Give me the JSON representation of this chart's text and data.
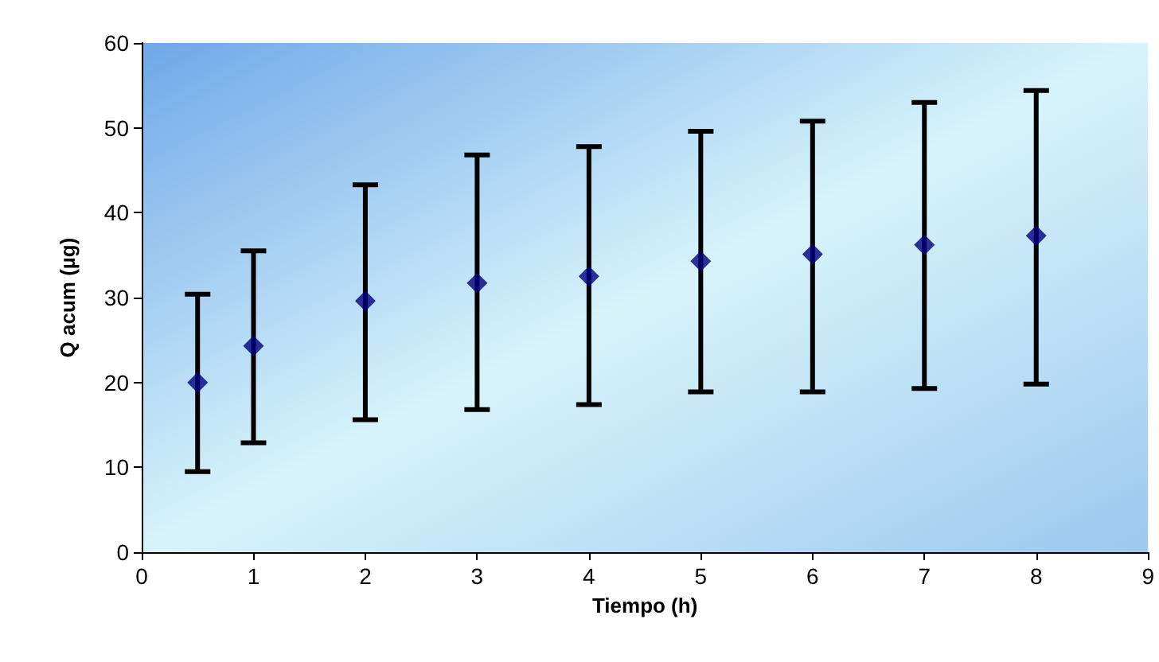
{
  "chart_data": {
    "type": "scatter",
    "xlabel": "Tiempo (h)",
    "ylabel": "Q acum (µg)",
    "x": [
      0.5,
      1,
      2,
      3,
      4,
      5,
      6,
      7,
      8
    ],
    "series": [
      {
        "color": "#000080",
        "values": [
          20.0,
          24.3,
          29.6,
          31.7,
          32.5,
          34.3,
          35.1,
          36.2,
          37.3
        ],
        "errors": [
          [
            9.5,
            30.4
          ],
          [
            12.9,
            35.5
          ],
          [
            15.6,
            43.3
          ],
          [
            16.8,
            46.8
          ],
          [
            17.4,
            47.8
          ],
          [
            18.9,
            49.6
          ],
          [
            18.9,
            50.8
          ],
          [
            19.3,
            53.0
          ],
          [
            19.8,
            54.4
          ]
        ]
      }
    ],
    "marker": "diamond",
    "grid": false,
    "xlim": [
      0,
      9
    ],
    "xticks": [
      0,
      1,
      2,
      3,
      4,
      5,
      6,
      7,
      8,
      9
    ],
    "ylim": [
      0,
      60
    ],
    "yticks": [
      0,
      10,
      20,
      30,
      40,
      50,
      60
    ]
  }
}
